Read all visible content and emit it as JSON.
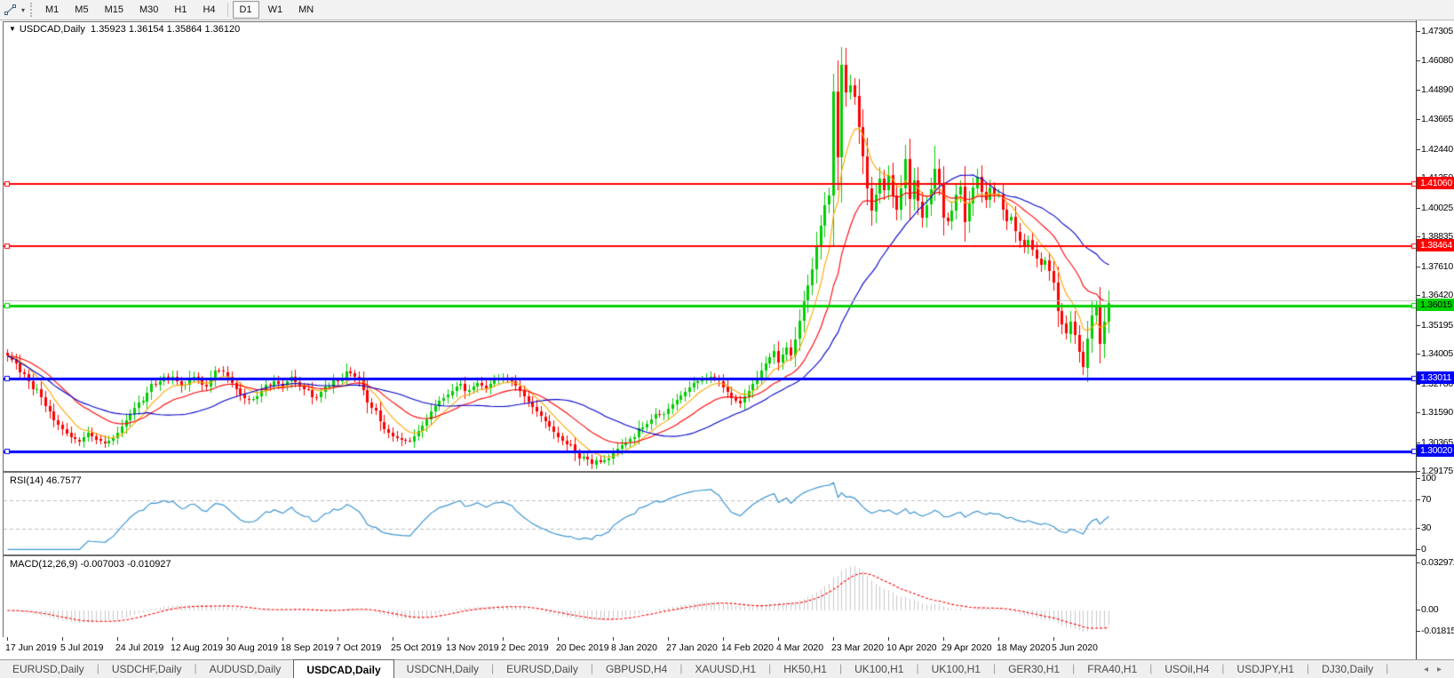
{
  "toolbar": {
    "timeframes": [
      "M1",
      "M5",
      "M15",
      "M30",
      "H1",
      "H4",
      "D1",
      "W1",
      "MN"
    ],
    "active_timeframe": "D1",
    "icons": [
      "line-tool-icon",
      "dropdown-caret-icon"
    ]
  },
  "chart": {
    "title_symbol": "USDCAD,Daily",
    "title_ohlc": "1.35923 1.36154 1.35864 1.36120",
    "dropdown_glyph": "▼"
  },
  "price_axis": {
    "ticks": [
      1.47305,
      1.4608,
      1.4489,
      1.43665,
      1.4244,
      1.4125,
      1.40025,
      1.38835,
      1.3761,
      1.3642,
      1.35195,
      1.34005,
      1.3278,
      1.3159,
      1.30365,
      1.29175
    ]
  },
  "hlines": [
    {
      "price": 1.4106,
      "tag": "1.41060",
      "color": "#ff0000",
      "tag_text": "#ffffff",
      "width": 2
    },
    {
      "price": 1.38464,
      "tag": "1.38464",
      "color": "#ff0000",
      "tag_text": "#ffffff",
      "width": 2
    },
    {
      "price": 1.3625,
      "tag": "",
      "color": "#bdbdbd",
      "tag_text": "",
      "width": 1
    },
    {
      "price": 1.36015,
      "tag": "1.36015",
      "color": "#00d300",
      "tag_text": "#000000",
      "width": 3
    },
    {
      "price": 1.33011,
      "tag": "1.33011",
      "color": "#0000ff",
      "tag_text": "#ffffff",
      "width": 3
    },
    {
      "price": 1.3002,
      "tag": "1.30020",
      "color": "#0000ff",
      "tag_text": "#ffffff",
      "width": 3
    }
  ],
  "indicators": {
    "rsi": {
      "label": "RSI(14) 46.7577",
      "period": 14,
      "value": 46.7577,
      "levels": [
        100,
        70,
        30,
        0
      ],
      "color": "#3e96d2"
    },
    "macd": {
      "label": "MACD(12,26,9) -0.007003 -0.010927",
      "fast": 12,
      "slow": 26,
      "signal": 9,
      "value": -0.007003,
      "signal_value": -0.010927,
      "ticks": [
        "0.032972",
        "0.00",
        "-0.018154"
      ],
      "tick_values": [
        0.032972,
        0.0,
        -0.018154
      ],
      "bar_color": "#c9c9c9",
      "signal_color": "#ff0000"
    }
  },
  "date_axis": {
    "labels": [
      "17 Jun 2019",
      "5 Jul 2019",
      "24 Jul 2019",
      "12 Aug 2019",
      "30 Aug 2019",
      "18 Sep 2019",
      "7 Oct 2019",
      "25 Oct 2019",
      "13 Nov 2019",
      "2 Dec 2019",
      "20 Dec 2019",
      "8 Jan 2020",
      "27 Jan 2020",
      "14 Feb 2020",
      "4 Mar 2020",
      "23 Mar 2020",
      "10 Apr 2020",
      "29 Apr 2020",
      "18 May 2020",
      "5 Jun 2020"
    ],
    "candles_per_label": 13
  },
  "tabs": {
    "items": [
      "EURUSD,Daily",
      "USDCHF,Daily",
      "AUDUSD,Daily",
      "USDCAD,Daily",
      "USDCNH,Daily",
      "EURUSD,Daily",
      "GBPUSD,H4",
      "XAUUSD,H1",
      "HK50,H1",
      "UK100,H1",
      "UK100,H1",
      "GER30,H1",
      "FRA40,H1",
      "USOil,H4",
      "USDJPY,H1",
      "DJ30,Daily"
    ],
    "active_index": 3,
    "nav_left_glyph": "◂",
    "nav_right_glyph": "▸"
  },
  "chart_data": {
    "type": "candlestick",
    "symbol": "USDCAD",
    "timeframe": "Daily",
    "last_open": 1.35923,
    "last_high": 1.36154,
    "last_low": 1.35864,
    "last_close": 1.3612,
    "num_candles": 261,
    "bull_color": "#00ce00",
    "bear_color": "#ff0000",
    "close_anchors": [
      [
        0,
        1.3395
      ],
      [
        2,
        1.3365
      ],
      [
        5,
        1.329
      ],
      [
        8,
        1.3225
      ],
      [
        11,
        1.313
      ],
      [
        13,
        1.3095
      ],
      [
        15,
        1.306
      ],
      [
        17,
        1.3042
      ],
      [
        19,
        1.3078
      ],
      [
        21,
        1.3052
      ],
      [
        23,
        1.3035
      ],
      [
        25,
        1.3058
      ],
      [
        26,
        1.308
      ],
      [
        28,
        1.313
      ],
      [
        30,
        1.318
      ],
      [
        33,
        1.3245
      ],
      [
        36,
        1.329
      ],
      [
        39,
        1.331
      ],
      [
        41,
        1.327
      ],
      [
        44,
        1.331
      ],
      [
        47,
        1.327
      ],
      [
        49,
        1.3335
      ],
      [
        52,
        1.331
      ],
      [
        54,
        1.326
      ],
      [
        57,
        1.3215
      ],
      [
        60,
        1.325
      ],
      [
        63,
        1.329
      ],
      [
        65,
        1.327
      ],
      [
        67,
        1.331
      ],
      [
        70,
        1.3258
      ],
      [
        73,
        1.3225
      ],
      [
        75,
        1.3268
      ],
      [
        78,
        1.329
      ],
      [
        81,
        1.3325
      ],
      [
        83,
        1.3295
      ],
      [
        86,
        1.318
      ],
      [
        89,
        1.3095
      ],
      [
        91,
        1.3065
      ],
      [
        93,
        1.3048
      ],
      [
        95,
        1.3042
      ],
      [
        97,
        1.3085
      ],
      [
        100,
        1.3165
      ],
      [
        102,
        1.321
      ],
      [
        104,
        1.3235
      ],
      [
        106,
        1.327
      ],
      [
        109,
        1.3255
      ],
      [
        111,
        1.3285
      ],
      [
        113,
        1.3262
      ],
      [
        115,
        1.3298
      ],
      [
        117,
        1.3305
      ],
      [
        119,
        1.329
      ],
      [
        121,
        1.325
      ],
      [
        123,
        1.3205
      ],
      [
        125,
        1.3165
      ],
      [
        127,
        1.3125
      ],
      [
        129,
        1.308
      ],
      [
        131,
        1.3045
      ],
      [
        134,
        1.2995
      ],
      [
        137,
        1.2968
      ],
      [
        140,
        1.2958
      ],
      [
        142,
        1.2972
      ],
      [
        143,
        1.2998
      ],
      [
        145,
        1.3028
      ],
      [
        147,
        1.3052
      ],
      [
        150,
        1.3102
      ],
      [
        153,
        1.3155
      ],
      [
        156,
        1.3178
      ],
      [
        158,
        1.3215
      ],
      [
        160,
        1.3248
      ],
      [
        162,
        1.3282
      ],
      [
        164,
        1.3298
      ],
      [
        166,
        1.331
      ],
      [
        168,
        1.3292
      ],
      [
        169,
        1.3268
      ],
      [
        171,
        1.3222
      ],
      [
        173,
        1.3202
      ],
      [
        175,
        1.3252
      ],
      [
        177,
        1.3305
      ],
      [
        179,
        1.3365
      ],
      [
        181,
        1.3415
      ],
      [
        182,
        1.3368
      ],
      [
        183,
        1.3402
      ],
      [
        184,
        1.3432
      ],
      [
        185,
        1.3398
      ],
      [
        186,
        1.3465
      ],
      [
        187,
        1.354
      ],
      [
        188,
        1.3622
      ],
      [
        189,
        1.3685
      ],
      [
        190,
        1.3752
      ],
      [
        191,
        1.3848
      ],
      [
        192,
        1.3932
      ],
      [
        193,
        1.4018
      ],
      [
        194,
        1.4055
      ],
      [
        195,
        1.4485
      ],
      [
        196,
        1.4215
      ],
      [
        197,
        1.4595
      ],
      [
        198,
        1.4482
      ],
      [
        199,
        1.4512
      ],
      [
        200,
        1.4465
      ],
      [
        201,
        1.4338
      ],
      [
        202,
        1.4218
      ],
      [
        203,
        1.4085
      ],
      [
        204,
        1.3992
      ],
      [
        205,
        1.4062
      ],
      [
        206,
        1.4125
      ],
      [
        207,
        1.4078
      ],
      [
        208,
        1.4142
      ],
      [
        209,
        1.4058
      ],
      [
        210,
        1.3998
      ],
      [
        211,
        1.4085
      ],
      [
        212,
        1.4205
      ],
      [
        213,
        1.4042
      ],
      [
        214,
        1.4118
      ],
      [
        215,
        1.4032
      ],
      [
        216,
        1.3965
      ],
      [
        217,
        1.4018
      ],
      [
        218,
        1.4082
      ],
      [
        219,
        1.4168
      ],
      [
        220,
        1.4105
      ],
      [
        221,
        1.3965
      ],
      [
        222,
        1.3952
      ],
      [
        223,
        1.3995
      ],
      [
        224,
        1.4062
      ],
      [
        225,
        1.4095
      ],
      [
        226,
        1.3948
      ],
      [
        227,
        1.4022
      ],
      [
        228,
        1.4088
      ],
      [
        229,
        1.4135
      ],
      [
        230,
        1.4072
      ],
      [
        231,
        1.4038
      ],
      [
        232,
        1.4088
      ],
      [
        233,
        1.4058
      ],
      [
        234,
        1.4062
      ],
      [
        235,
        1.3998
      ],
      [
        236,
        1.3952
      ],
      [
        237,
        1.3968
      ],
      [
        238,
        1.3908
      ],
      [
        239,
        1.3872
      ],
      [
        240,
        1.3845
      ],
      [
        241,
        1.3872
      ],
      [
        242,
        1.3832
      ],
      [
        243,
        1.3795
      ],
      [
        244,
        1.3768
      ],
      [
        245,
        1.3788
      ],
      [
        246,
        1.3745
      ],
      [
        247,
        1.3698
      ],
      [
        248,
        1.3582
      ],
      [
        249,
        1.3528
      ],
      [
        250,
        1.3488
      ],
      [
        251,
        1.3538
      ],
      [
        252,
        1.3482
      ],
      [
        253,
        1.3412
      ],
      [
        254,
        1.3348
      ],
      [
        255,
        1.3468
      ],
      [
        256,
        1.3562
      ],
      [
        257,
        1.3598
      ],
      [
        258,
        1.3445
      ],
      [
        259,
        1.3535
      ],
      [
        260,
        1.3612
      ]
    ],
    "wick_overrides": {
      "23": {
        "low": 1.3016
      },
      "49": {
        "high": 1.3355
      },
      "95": {
        "low": 1.304
      },
      "140": {
        "low": 1.2952
      },
      "166": {
        "high": 1.333
      },
      "181": {
        "high": 1.3445
      },
      "195": {
        "high": 1.456
      },
      "197": {
        "high": 1.4668
      },
      "199": {
        "high": 1.4553
      },
      "212": {
        "high": 1.4265
      },
      "219": {
        "high": 1.4262
      },
      "254": {
        "low": 1.3318
      }
    },
    "moving_averages": [
      {
        "name": "ma-fast",
        "method": "ema",
        "period": 8,
        "color": "#ffa500"
      },
      {
        "name": "ma-mid",
        "method": "ema",
        "period": 21,
        "color": "#ff0000"
      },
      {
        "name": "ma-slow",
        "method": "sma",
        "period": 34,
        "color": "#0000c8"
      }
    ],
    "y_range": [
      1.29175,
      1.47305
    ],
    "x_labels_first": "17 Jun 2019",
    "x_labels_last": "5 Jun 2020"
  }
}
